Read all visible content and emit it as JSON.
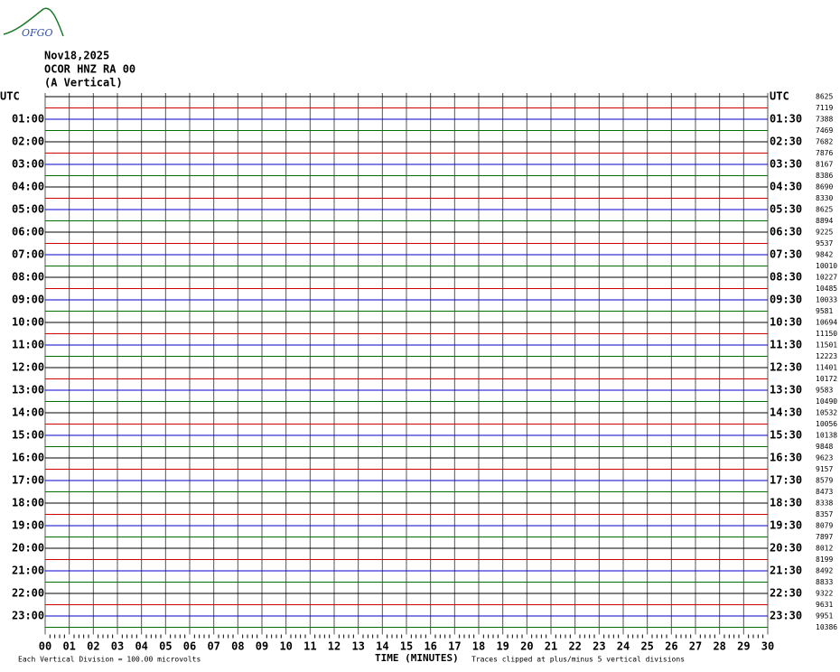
{
  "logo": "OFGO",
  "header": [
    "Nov18,2025",
    "OCOR HNZ RA 00",
    "(A Vertical)"
  ],
  "left_labels": [
    "UTC",
    "01:00",
    "02:00",
    "03:00",
    "04:00",
    "05:00",
    "06:00",
    "07:00",
    "08:00",
    "09:00",
    "10:00",
    "11:00",
    "12:00",
    "13:00",
    "14:00",
    "15:00",
    "16:00",
    "17:00",
    "18:00",
    "19:00",
    "20:00",
    "21:00",
    "22:00",
    "23:00"
  ],
  "right_labels": [
    "UTC",
    "01:30",
    "02:30",
    "03:30",
    "04:30",
    "05:30",
    "06:30",
    "07:30",
    "08:30",
    "09:30",
    "10:30",
    "11:30",
    "12:30",
    "13:30",
    "14:30",
    "15:30",
    "16:30",
    "17:30",
    "18:30",
    "19:30",
    "20:30",
    "21:30",
    "22:30",
    "23:30"
  ],
  "counts": [
    8625,
    7119,
    7388,
    7469,
    7682,
    7876,
    8167,
    8386,
    8690,
    8330,
    8625,
    8894,
    9225,
    9537,
    9842,
    10010,
    10227,
    10485,
    10033,
    9581,
    10694,
    11150,
    11501,
    12223,
    11401,
    10172,
    9583,
    10490,
    10532,
    10056,
    10138,
    9848,
    9623,
    9157,
    8579,
    8473,
    8338,
    8357,
    8079,
    7897,
    8012,
    8199,
    8492,
    8833,
    9322,
    9631,
    9951,
    10386
  ],
  "trace_colors": [
    "#000000",
    "#d00000",
    "#0000d0",
    "#007000"
  ],
  "x_axis": {
    "label": "TIME (MINUTES)",
    "xlim": [
      0,
      30
    ],
    "xticks": [
      {
        "value": 0,
        "label": "00"
      },
      {
        "value": 1,
        "label": "01"
      },
      {
        "value": 2,
        "label": "02"
      },
      {
        "value": 3,
        "label": "03"
      },
      {
        "value": 4,
        "label": "04"
      },
      {
        "value": 5,
        "label": "05"
      },
      {
        "value": 6,
        "label": "06"
      },
      {
        "value": 7,
        "label": "07"
      },
      {
        "value": 8,
        "label": "08"
      },
      {
        "value": 9,
        "label": "09"
      },
      10,
      11,
      12,
      13,
      14,
      15,
      16,
      17,
      18,
      19,
      20,
      21,
      22,
      23,
      24,
      25,
      26,
      27,
      28,
      29,
      30
    ]
  },
  "footer": {
    "scale": "Each Vertical Division =  100.00 microvolts",
    "clip": "Traces clipped at plus/minus 5 vertical divisions"
  }
}
